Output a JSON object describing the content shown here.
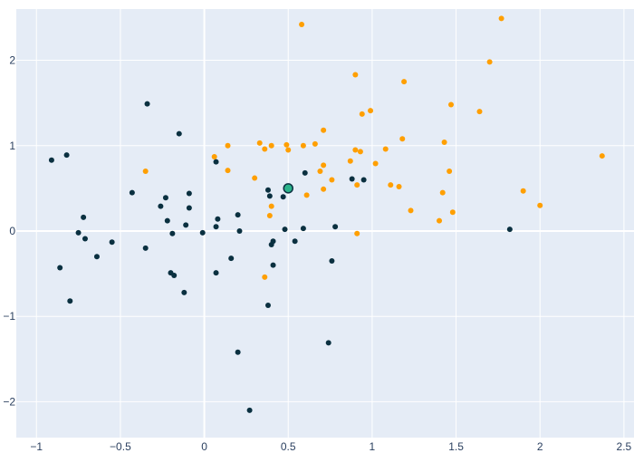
{
  "chart_data": {
    "type": "scatter",
    "title": "",
    "xlabel": "",
    "ylabel": "",
    "xlim": [
      -1.12,
      2.56
    ],
    "ylim": [
      -2.42,
      2.6
    ],
    "grid": true,
    "x_ticks": [
      -1,
      -0.5,
      0,
      0.5,
      1,
      1.5,
      2,
      2.5
    ],
    "x_tick_labels": [
      "−1",
      "−0.5",
      "0",
      "0.5",
      "1",
      "1.5",
      "2",
      "2.5"
    ],
    "y_ticks": [
      -2,
      -1,
      0,
      1,
      2
    ],
    "y_tick_labels": [
      "−2",
      "−1",
      "0",
      "1",
      "2"
    ],
    "colors": {
      "plot_background": "#e5ecf6",
      "grid": "#ffffff",
      "highlight_fill": "#2bb38a",
      "highlight_stroke": "#0a3040"
    },
    "series": [
      {
        "color": "#0a3040",
        "points": [
          [
            -0.91,
            0.83
          ],
          [
            -0.82,
            0.89
          ],
          [
            -0.34,
            1.49
          ],
          [
            -0.15,
            1.14
          ],
          [
            -0.43,
            0.45
          ],
          [
            -0.26,
            0.29
          ],
          [
            -0.23,
            0.39
          ],
          [
            -0.22,
            0.12
          ],
          [
            -0.09,
            0.44
          ],
          [
            -0.09,
            0.27
          ],
          [
            -0.72,
            0.16
          ],
          [
            -0.75,
            -0.02
          ],
          [
            -0.71,
            -0.09
          ],
          [
            -0.64,
            -0.3
          ],
          [
            -0.55,
            -0.13
          ],
          [
            -0.86,
            -0.43
          ],
          [
            -0.8,
            -0.82
          ],
          [
            -0.35,
            -0.2
          ],
          [
            -0.19,
            -0.03
          ],
          [
            -0.11,
            0.07
          ],
          [
            -0.2,
            -0.49
          ],
          [
            -0.18,
            -0.52
          ],
          [
            -0.12,
            -0.72
          ],
          [
            -0.01,
            -0.02
          ],
          [
            0.07,
            0.81
          ],
          [
            0.08,
            0.14
          ],
          [
            0.07,
            0.05
          ],
          [
            0.2,
            0.19
          ],
          [
            0.21,
            0.0
          ],
          [
            0.07,
            -0.49
          ],
          [
            0.16,
            -0.32
          ],
          [
            0.2,
            -1.42
          ],
          [
            0.27,
            -2.1
          ],
          [
            0.38,
            0.48
          ],
          [
            0.39,
            0.41
          ],
          [
            0.4,
            -0.16
          ],
          [
            0.41,
            -0.12
          ],
          [
            0.41,
            -0.4
          ],
          [
            0.38,
            -0.87
          ],
          [
            0.47,
            0.4
          ],
          [
            0.48,
            0.02
          ],
          [
            0.54,
            -0.12
          ],
          [
            0.59,
            0.03
          ],
          [
            0.6,
            0.68
          ],
          [
            0.78,
            0.05
          ],
          [
            0.76,
            -0.35
          ],
          [
            0.74,
            -1.31
          ],
          [
            0.88,
            0.61
          ],
          [
            0.95,
            0.6
          ],
          [
            1.82,
            0.02
          ]
        ]
      },
      {
        "color": "#ff9f00",
        "points": [
          [
            0.58,
            2.42
          ],
          [
            1.77,
            2.49
          ],
          [
            1.7,
            1.98
          ],
          [
            0.9,
            1.83
          ],
          [
            1.19,
            1.75
          ],
          [
            1.47,
            1.48
          ],
          [
            1.64,
            1.4
          ],
          [
            0.94,
            1.37
          ],
          [
            0.99,
            1.41
          ],
          [
            1.18,
            1.08
          ],
          [
            1.43,
            1.04
          ],
          [
            0.71,
            1.18
          ],
          [
            0.66,
            1.02
          ],
          [
            0.59,
            1.0
          ],
          [
            0.49,
            1.01
          ],
          [
            0.4,
            1.0
          ],
          [
            0.33,
            1.03
          ],
          [
            0.36,
            0.96
          ],
          [
            0.5,
            0.95
          ],
          [
            0.14,
            1.0
          ],
          [
            0.06,
            0.87
          ],
          [
            0.9,
            0.95
          ],
          [
            0.93,
            0.93
          ],
          [
            1.08,
            0.96
          ],
          [
            0.87,
            0.82
          ],
          [
            1.02,
            0.79
          ],
          [
            0.71,
            0.77
          ],
          [
            0.69,
            0.7
          ],
          [
            0.14,
            0.71
          ],
          [
            0.3,
            0.62
          ],
          [
            0.76,
            0.6
          ],
          [
            0.91,
            0.54
          ],
          [
            1.11,
            0.54
          ],
          [
            1.16,
            0.52
          ],
          [
            1.46,
            0.7
          ],
          [
            1.42,
            0.45
          ],
          [
            0.71,
            0.49
          ],
          [
            0.61,
            0.42
          ],
          [
            0.4,
            0.29
          ],
          [
            0.39,
            0.18
          ],
          [
            1.23,
            0.24
          ],
          [
            1.4,
            0.12
          ],
          [
            1.48,
            0.22
          ],
          [
            1.9,
            0.47
          ],
          [
            2.0,
            0.3
          ],
          [
            2.37,
            0.88
          ],
          [
            0.91,
            -0.03
          ],
          [
            0.36,
            -0.54
          ],
          [
            -0.35,
            0.7
          ]
        ]
      }
    ],
    "highlight_point": [
      0.5,
      0.5
    ]
  }
}
